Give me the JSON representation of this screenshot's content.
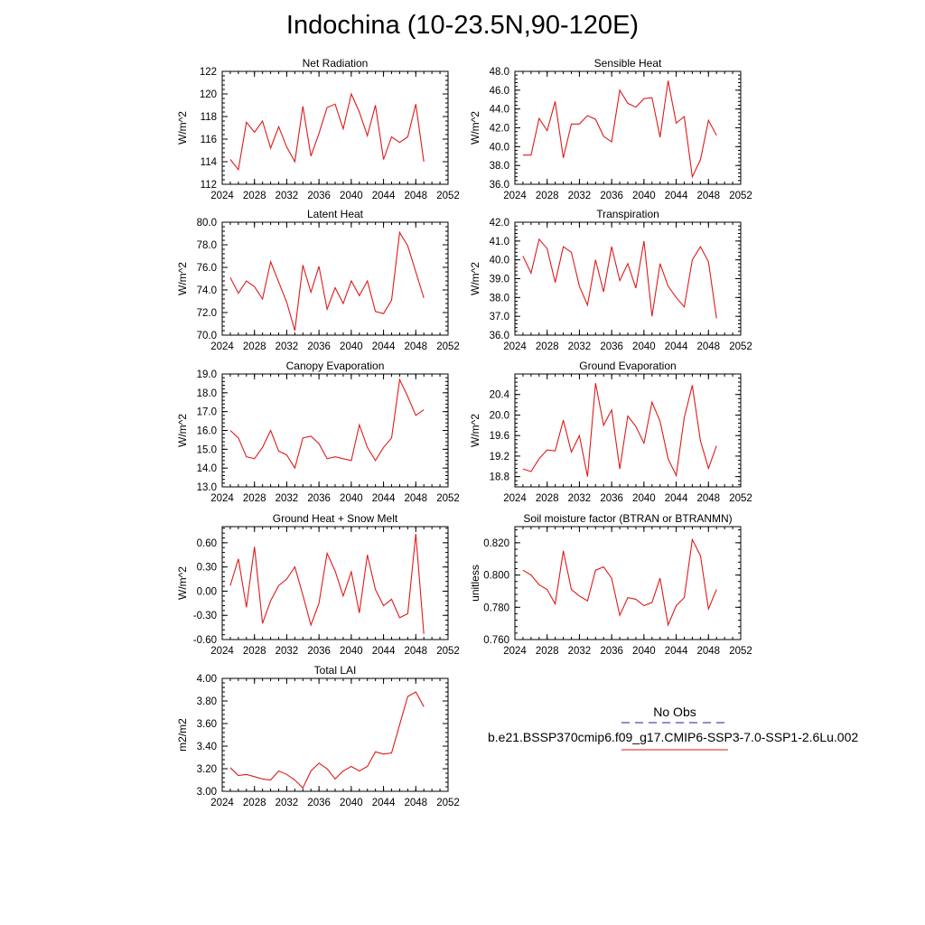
{
  "page": {
    "title": "Indochina (10-23.5N,90-120E)"
  },
  "legend": {
    "obs_label": "No Obs",
    "obs_color": "#1c1c9c",
    "obs_style": "dashed",
    "model_label": "b.e21.BSSP370cmip6.f09_g17.CMIP6-SSP3-7.0-SSP1-2.6Lu.002",
    "model_color": "#e01a1a",
    "model_style": "solid"
  },
  "chart_data": [
    {
      "type": "line",
      "title": "Net Radiation",
      "ylabel": "W/m^2",
      "xlim": [
        2024,
        2052
      ],
      "ylim": [
        112,
        122
      ],
      "xticks": [
        "2024",
        "2028",
        "2032",
        "2036",
        "2040",
        "2044",
        "2048",
        "2052"
      ],
      "yticks": [
        "112",
        "114",
        "116",
        "118",
        "120",
        "122"
      ],
      "x": [
        2025,
        2026,
        2027,
        2028,
        2029,
        2030,
        2031,
        2032,
        2033,
        2034,
        2035,
        2036,
        2037,
        2038,
        2039,
        2040,
        2041,
        2042,
        2043,
        2044,
        2045,
        2046,
        2047,
        2048,
        2049
      ],
      "series": [
        {
          "values": [
            114.2,
            113.3,
            117.5,
            116.6,
            117.6,
            115.2,
            117.1,
            115.3,
            114.0,
            118.9,
            114.5,
            116.5,
            118.8,
            119.1,
            116.9,
            120.0,
            118.4,
            116.3,
            119.0,
            114.2,
            116.2,
            115.7,
            116.2,
            119.1,
            114.0
          ]
        }
      ]
    },
    {
      "type": "line",
      "title": "Sensible Heat",
      "ylabel": "W/m^2",
      "xlim": [
        2024,
        2052
      ],
      "ylim": [
        36.0,
        48.0
      ],
      "xticks": [
        "2024",
        "2028",
        "2032",
        "2036",
        "2040",
        "2044",
        "2048",
        "2052"
      ],
      "yticks": [
        "36.0",
        "38.0",
        "40.0",
        "42.0",
        "44.0",
        "46.0",
        "48.0"
      ],
      "x": [
        2025,
        2026,
        2027,
        2028,
        2029,
        2030,
        2031,
        2032,
        2033,
        2034,
        2035,
        2036,
        2037,
        2038,
        2039,
        2040,
        2041,
        2042,
        2043,
        2044,
        2045,
        2046,
        2047,
        2048,
        2049
      ],
      "series": [
        {
          "values": [
            39.1,
            39.1,
            43.0,
            41.7,
            44.8,
            38.8,
            42.4,
            42.4,
            43.3,
            42.9,
            41.1,
            40.5,
            46.0,
            44.6,
            44.2,
            45.1,
            45.2,
            41.0,
            47.0,
            42.5,
            43.2,
            36.8,
            38.6,
            42.8,
            41.2
          ]
        }
      ]
    },
    {
      "type": "line",
      "title": "Latent Heat",
      "ylabel": "W/m^2",
      "xlim": [
        2024,
        2052
      ],
      "ylim": [
        70.0,
        80.0
      ],
      "xticks": [
        "2024",
        "2028",
        "2032",
        "2036",
        "2040",
        "2044",
        "2048",
        "2052"
      ],
      "yticks": [
        "70.0",
        "72.0",
        "74.0",
        "76.0",
        "78.0",
        "80.0"
      ],
      "x": [
        2025,
        2026,
        2027,
        2028,
        2029,
        2030,
        2031,
        2032,
        2033,
        2034,
        2035,
        2036,
        2037,
        2038,
        2039,
        2040,
        2041,
        2042,
        2043,
        2044,
        2045,
        2046,
        2047,
        2048,
        2049
      ],
      "series": [
        {
          "values": [
            75.1,
            73.7,
            74.8,
            74.3,
            73.2,
            76.5,
            74.7,
            72.9,
            70.4,
            76.2,
            73.8,
            76.1,
            72.3,
            74.2,
            72.8,
            74.8,
            73.5,
            74.8,
            72.1,
            71.9,
            73.1,
            79.1,
            77.9,
            75.6,
            73.3
          ]
        }
      ]
    },
    {
      "type": "line",
      "title": "Transpiration",
      "ylabel": "W/m^2",
      "xlim": [
        2024,
        2052
      ],
      "ylim": [
        36.0,
        42.0
      ],
      "xticks": [
        "2024",
        "2028",
        "2032",
        "2036",
        "2040",
        "2044",
        "2048",
        "2052"
      ],
      "yticks": [
        "36.0",
        "37.0",
        "38.0",
        "39.0",
        "40.0",
        "41.0",
        "42.0"
      ],
      "x": [
        2025,
        2026,
        2027,
        2028,
        2029,
        2030,
        2031,
        2032,
        2033,
        2034,
        2035,
        2036,
        2037,
        2038,
        2039,
        2040,
        2041,
        2042,
        2043,
        2044,
        2045,
        2046,
        2047,
        2048,
        2049
      ],
      "series": [
        {
          "values": [
            40.2,
            39.3,
            41.1,
            40.6,
            38.8,
            40.7,
            40.4,
            38.6,
            37.6,
            40.0,
            38.3,
            40.7,
            38.9,
            39.8,
            38.5,
            41.0,
            37.0,
            39.8,
            38.6,
            38.0,
            37.5,
            40.0,
            40.7,
            39.9,
            36.9
          ]
        }
      ]
    },
    {
      "type": "line",
      "title": "Canopy Evaporation",
      "ylabel": "W/m^2",
      "xlim": [
        2024,
        2052
      ],
      "ylim": [
        13.0,
        19.0
      ],
      "xticks": [
        "2024",
        "2028",
        "2032",
        "2036",
        "2040",
        "2044",
        "2048",
        "2052"
      ],
      "yticks": [
        "13.0",
        "14.0",
        "15.0",
        "16.0",
        "17.0",
        "18.0",
        "19.0"
      ],
      "x": [
        2025,
        2026,
        2027,
        2028,
        2029,
        2030,
        2031,
        2032,
        2033,
        2034,
        2035,
        2036,
        2037,
        2038,
        2039,
        2040,
        2041,
        2042,
        2043,
        2044,
        2045,
        2046,
        2047,
        2048,
        2049
      ],
      "series": [
        {
          "values": [
            16.0,
            15.6,
            14.6,
            14.5,
            15.1,
            16.0,
            14.9,
            14.7,
            14.0,
            15.6,
            15.7,
            15.3,
            14.5,
            14.6,
            14.5,
            14.4,
            16.3,
            15.1,
            14.4,
            15.1,
            15.6,
            18.7,
            17.8,
            16.8,
            17.1
          ]
        }
      ]
    },
    {
      "type": "line",
      "title": "Ground Evaporation",
      "ylabel": "W/m^2",
      "xlim": [
        2024,
        2052
      ],
      "ylim": [
        18.6,
        20.8
      ],
      "xticks": [
        "2024",
        "2028",
        "2032",
        "2036",
        "2040",
        "2044",
        "2048",
        "2052"
      ],
      "yticks": [
        "18.8",
        "19.2",
        "19.6",
        "20.0",
        "20.4"
      ],
      "x": [
        2025,
        2026,
        2027,
        2028,
        2029,
        2030,
        2031,
        2032,
        2033,
        2034,
        2035,
        2036,
        2037,
        2038,
        2039,
        2040,
        2041,
        2042,
        2043,
        2044,
        2045,
        2046,
        2047,
        2048,
        2049
      ],
      "series": [
        {
          "values": [
            18.95,
            18.9,
            19.15,
            19.32,
            19.3,
            19.9,
            19.28,
            19.6,
            18.8,
            20.62,
            19.8,
            20.1,
            18.95,
            19.98,
            19.78,
            19.45,
            20.25,
            19.88,
            19.15,
            18.82,
            19.95,
            20.58,
            19.5,
            18.96,
            19.4
          ]
        }
      ]
    },
    {
      "type": "line",
      "title": "Ground Heat + Snow Melt",
      "ylabel": "W/m^2",
      "xlim": [
        2024,
        2052
      ],
      "ylim": [
        -0.6,
        0.8
      ],
      "xticks": [
        "2024",
        "2028",
        "2032",
        "2036",
        "2040",
        "2044",
        "2048",
        "2052"
      ],
      "yticks": [
        "-0.60",
        "-0.30",
        "0.00",
        "0.30",
        "0.60"
      ],
      "x": [
        2025,
        2026,
        2027,
        2028,
        2029,
        2030,
        2031,
        2032,
        2033,
        2034,
        2035,
        2036,
        2037,
        2038,
        2039,
        2040,
        2041,
        2042,
        2043,
        2044,
        2045,
        2046,
        2047,
        2048,
        2049
      ],
      "series": [
        {
          "values": [
            0.07,
            0.4,
            -0.2,
            0.55,
            -0.4,
            -0.12,
            0.07,
            0.15,
            0.3,
            -0.05,
            -0.42,
            -0.15,
            0.47,
            0.25,
            -0.06,
            0.24,
            -0.27,
            0.45,
            0.02,
            -0.18,
            -0.1,
            -0.33,
            -0.28,
            0.71,
            -0.53
          ]
        }
      ]
    },
    {
      "type": "line",
      "title": "Soil moisture factor (BTRAN or BTRANMN)",
      "ylabel": "unitless",
      "xlim": [
        2024,
        2052
      ],
      "ylim": [
        0.76,
        0.83
      ],
      "xticks": [
        "2024",
        "2028",
        "2032",
        "2036",
        "2040",
        "2044",
        "2048",
        "2052"
      ],
      "yticks": [
        "0.760",
        "0.780",
        "0.800",
        "0.820"
      ],
      "x": [
        2025,
        2026,
        2027,
        2028,
        2029,
        2030,
        2031,
        2032,
        2033,
        2034,
        2035,
        2036,
        2037,
        2038,
        2039,
        2040,
        2041,
        2042,
        2043,
        2044,
        2045,
        2046,
        2047,
        2048,
        2049
      ],
      "series": [
        {
          "values": [
            0.803,
            0.8,
            0.794,
            0.791,
            0.782,
            0.815,
            0.791,
            0.787,
            0.784,
            0.803,
            0.805,
            0.798,
            0.775,
            0.786,
            0.785,
            0.781,
            0.783,
            0.798,
            0.769,
            0.781,
            0.786,
            0.822,
            0.812,
            0.779,
            0.791
          ]
        }
      ]
    },
    {
      "type": "line",
      "title": "Total LAI",
      "ylabel": "m2/m2",
      "xlim": [
        2024,
        2052
      ],
      "ylim": [
        3.0,
        4.0
      ],
      "xticks": [
        "2024",
        "2028",
        "2032",
        "2036",
        "2040",
        "2044",
        "2048",
        "2052"
      ],
      "yticks": [
        "3.00",
        "3.20",
        "3.40",
        "3.60",
        "3.80",
        "4.00"
      ],
      "x": [
        2025,
        2026,
        2027,
        2028,
        2029,
        2030,
        2031,
        2032,
        2033,
        2034,
        2035,
        2036,
        2037,
        2038,
        2039,
        2040,
        2041,
        2042,
        2043,
        2044,
        2045,
        2046,
        2047,
        2048,
        2049
      ],
      "series": [
        {
          "values": [
            3.21,
            3.14,
            3.15,
            3.13,
            3.11,
            3.1,
            3.18,
            3.15,
            3.1,
            3.03,
            3.18,
            3.25,
            3.2,
            3.11,
            3.18,
            3.22,
            3.18,
            3.22,
            3.35,
            3.33,
            3.34,
            3.59,
            3.84,
            3.88,
            3.75
          ]
        }
      ]
    }
  ]
}
